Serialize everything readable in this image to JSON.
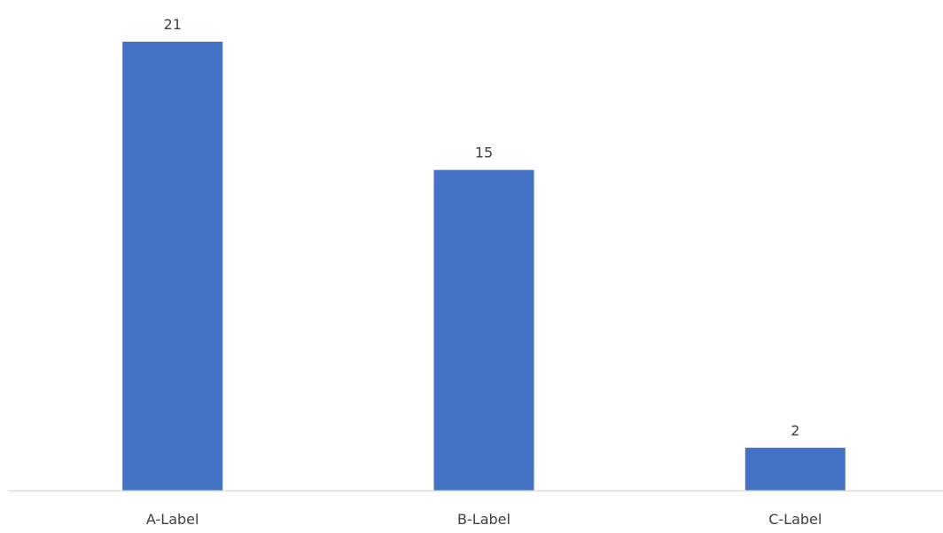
{
  "chart_data": {
    "type": "bar",
    "categories": [
      "A-Label",
      "B-Label",
      "C-Label"
    ],
    "values": [
      21,
      15,
      2
    ],
    "data_labels": [
      "21",
      "15",
      "2"
    ],
    "ylim": [
      0,
      22
    ],
    "grid": false,
    "legend": "none",
    "bar_color": "#4472C4",
    "axis_color": "#D9D9D9",
    "text_color": "#404040"
  }
}
